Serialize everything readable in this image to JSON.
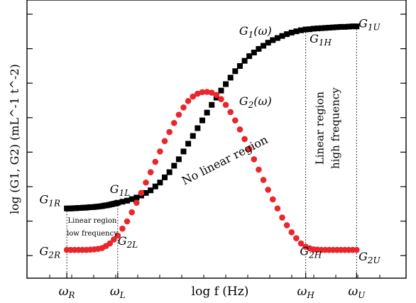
{
  "chart_data": {
    "type": "scatter",
    "title": "",
    "xlabel": "log f (Hz)",
    "ylabel": "log (G1, G2) (mL^-1 t^-2)",
    "x_ticks": [
      {
        "label": "ω_R",
        "x": 0.8
      },
      {
        "label": "ω_L",
        "x": 2.1
      },
      {
        "label": "ω_H",
        "x": 6.9
      },
      {
        "label": "ω_U",
        "x": 8.2
      }
    ],
    "xlim": [
      0,
      9.3
    ],
    "ylim": [
      0,
      10
    ],
    "series": [
      {
        "name": "G1(ω)",
        "marker": "square",
        "color": "#000000",
        "points": [
          [
            0.8,
            2.5
          ],
          [
            0.86,
            2.5
          ],
          [
            0.92,
            2.5
          ],
          [
            0.98,
            2.51
          ],
          [
            1.04,
            2.51
          ],
          [
            1.1,
            2.52
          ],
          [
            1.16,
            2.52
          ],
          [
            1.22,
            2.53
          ],
          [
            1.28,
            2.53
          ],
          [
            1.34,
            2.54
          ],
          [
            1.4,
            2.55
          ],
          [
            1.46,
            2.55
          ],
          [
            1.52,
            2.56
          ],
          [
            1.58,
            2.57
          ],
          [
            1.64,
            2.58
          ],
          [
            1.7,
            2.59
          ],
          [
            1.76,
            2.61
          ],
          [
            1.82,
            2.62
          ],
          [
            1.88,
            2.64
          ],
          [
            1.94,
            2.66
          ],
          [
            2.0,
            2.68
          ],
          [
            2.06,
            2.7
          ],
          [
            2.1,
            2.72
          ],
          [
            2.22,
            2.76
          ],
          [
            2.34,
            2.8
          ],
          [
            2.46,
            2.86
          ],
          [
            2.58,
            2.92
          ],
          [
            2.7,
            3.0
          ],
          [
            2.82,
            3.1
          ],
          [
            2.94,
            3.2
          ],
          [
            3.06,
            3.35
          ],
          [
            3.18,
            3.5
          ],
          [
            3.3,
            3.7
          ],
          [
            3.42,
            3.9
          ],
          [
            3.54,
            4.15
          ],
          [
            3.66,
            4.4
          ],
          [
            3.78,
            4.7
          ],
          [
            3.9,
            5.0
          ],
          [
            4.02,
            5.3
          ],
          [
            4.14,
            5.6
          ],
          [
            4.26,
            5.9
          ],
          [
            4.38,
            6.2
          ],
          [
            4.5,
            6.5
          ],
          [
            4.62,
            6.78
          ],
          [
            4.74,
            7.05
          ],
          [
            4.86,
            7.3
          ],
          [
            4.98,
            7.55
          ],
          [
            5.1,
            7.8
          ],
          [
            5.22,
            8.0
          ],
          [
            5.34,
            8.2
          ],
          [
            5.46,
            8.38
          ],
          [
            5.58,
            8.52
          ],
          [
            5.7,
            8.66
          ],
          [
            5.82,
            8.78
          ],
          [
            5.94,
            8.9
          ],
          [
            6.06,
            9.0
          ],
          [
            6.18,
            9.08
          ],
          [
            6.3,
            9.16
          ],
          [
            6.42,
            9.23
          ],
          [
            6.54,
            9.29
          ],
          [
            6.66,
            9.34
          ],
          [
            6.78,
            9.38
          ],
          [
            6.9,
            9.41
          ],
          [
            7.0,
            9.42
          ],
          [
            7.1,
            9.44
          ],
          [
            7.2,
            9.45
          ],
          [
            7.3,
            9.46
          ],
          [
            7.4,
            9.47
          ],
          [
            7.5,
            9.48
          ],
          [
            7.6,
            9.49
          ],
          [
            7.7,
            9.5
          ],
          [
            7.8,
            9.51
          ],
          [
            7.9,
            9.51
          ],
          [
            8.0,
            9.52
          ],
          [
            8.1,
            9.53
          ],
          [
            8.2,
            9.53
          ]
        ]
      },
      {
        "name": "G2(ω)",
        "marker": "circle",
        "color": "#e8262b",
        "points": [
          [
            0.8,
            0.9
          ],
          [
            0.9,
            0.9
          ],
          [
            1.0,
            0.9
          ],
          [
            1.1,
            0.9
          ],
          [
            1.2,
            0.9
          ],
          [
            1.3,
            0.9
          ],
          [
            1.4,
            0.91
          ],
          [
            1.5,
            0.92
          ],
          [
            1.6,
            0.94
          ],
          [
            1.7,
            0.97
          ],
          [
            1.8,
            1.05
          ],
          [
            1.9,
            1.15
          ],
          [
            2.0,
            1.3
          ],
          [
            2.1,
            1.45
          ],
          [
            2.22,
            1.72
          ],
          [
            2.34,
            2.0
          ],
          [
            2.46,
            2.35
          ],
          [
            2.58,
            2.72
          ],
          [
            2.7,
            3.1
          ],
          [
            2.82,
            3.5
          ],
          [
            2.94,
            3.9
          ],
          [
            3.06,
            4.3
          ],
          [
            3.18,
            4.7
          ],
          [
            3.3,
            5.1
          ],
          [
            3.42,
            5.45
          ],
          [
            3.54,
            5.8
          ],
          [
            3.66,
            6.12
          ],
          [
            3.78,
            6.4
          ],
          [
            3.9,
            6.65
          ],
          [
            4.02,
            6.82
          ],
          [
            4.14,
            6.93
          ],
          [
            4.26,
            6.99
          ],
          [
            4.38,
            7.0
          ],
          [
            4.5,
            6.97
          ],
          [
            4.62,
            6.88
          ],
          [
            4.74,
            6.72
          ],
          [
            4.86,
            6.5
          ],
          [
            4.98,
            6.22
          ],
          [
            5.1,
            5.9
          ],
          [
            5.22,
            5.55
          ],
          [
            5.34,
            5.18
          ],
          [
            5.46,
            4.8
          ],
          [
            5.58,
            4.4
          ],
          [
            5.7,
            4.0
          ],
          [
            5.82,
            3.6
          ],
          [
            5.94,
            3.22
          ],
          [
            6.06,
            2.85
          ],
          [
            6.18,
            2.5
          ],
          [
            6.3,
            2.15
          ],
          [
            6.42,
            1.85
          ],
          [
            6.54,
            1.58
          ],
          [
            6.66,
            1.35
          ],
          [
            6.78,
            1.15
          ],
          [
            6.9,
            1.02
          ],
          [
            7.0,
            0.96
          ],
          [
            7.1,
            0.92
          ],
          [
            7.2,
            0.91
          ],
          [
            7.3,
            0.9
          ],
          [
            7.4,
            0.9
          ],
          [
            7.5,
            0.9
          ],
          [
            7.6,
            0.9
          ],
          [
            7.7,
            0.9
          ],
          [
            7.8,
            0.9
          ],
          [
            7.9,
            0.9
          ],
          [
            8.0,
            0.9
          ],
          [
            8.1,
            0.9
          ],
          [
            8.2,
            0.9
          ]
        ]
      }
    ],
    "annotations": [
      {
        "text": "G1R",
        "x": 0.1,
        "y": 2.7
      },
      {
        "text": "G2R",
        "x": 0.1,
        "y": 0.7
      },
      {
        "text": "G1L",
        "x": 1.9,
        "y": 3.1
      },
      {
        "text": "G2L",
        "x": 2.1,
        "y": 1.1
      },
      {
        "text": "G1(ω)",
        "x": 5.2,
        "y": 9.2
      },
      {
        "text": "G2(ω)",
        "x": 5.2,
        "y": 6.5
      },
      {
        "text": "G1H",
        "x": 7.0,
        "y": 8.9
      },
      {
        "text": "G1U",
        "x": 8.25,
        "y": 9.5
      },
      {
        "text": "G2H",
        "x": 6.75,
        "y": 0.7
      },
      {
        "text": "G2U",
        "x": 8.25,
        "y": 0.5
      },
      {
        "text": "No linear region",
        "x": 3.8,
        "y": 3.4
      },
      {
        "text": "Linear region",
        "x": 1.45,
        "y": 1.95
      },
      {
        "text": "low frequency",
        "x": 1.45,
        "y": 1.45
      },
      {
        "text": "Linear region",
        "x": 7.35,
        "y": 5.6
      },
      {
        "text": "high frequency",
        "x": 7.75,
        "y": 5.6
      }
    ],
    "vertical_guides": [
      0.8,
      2.1,
      6.9,
      8.2
    ],
    "grid": false,
    "legend": "none"
  }
}
